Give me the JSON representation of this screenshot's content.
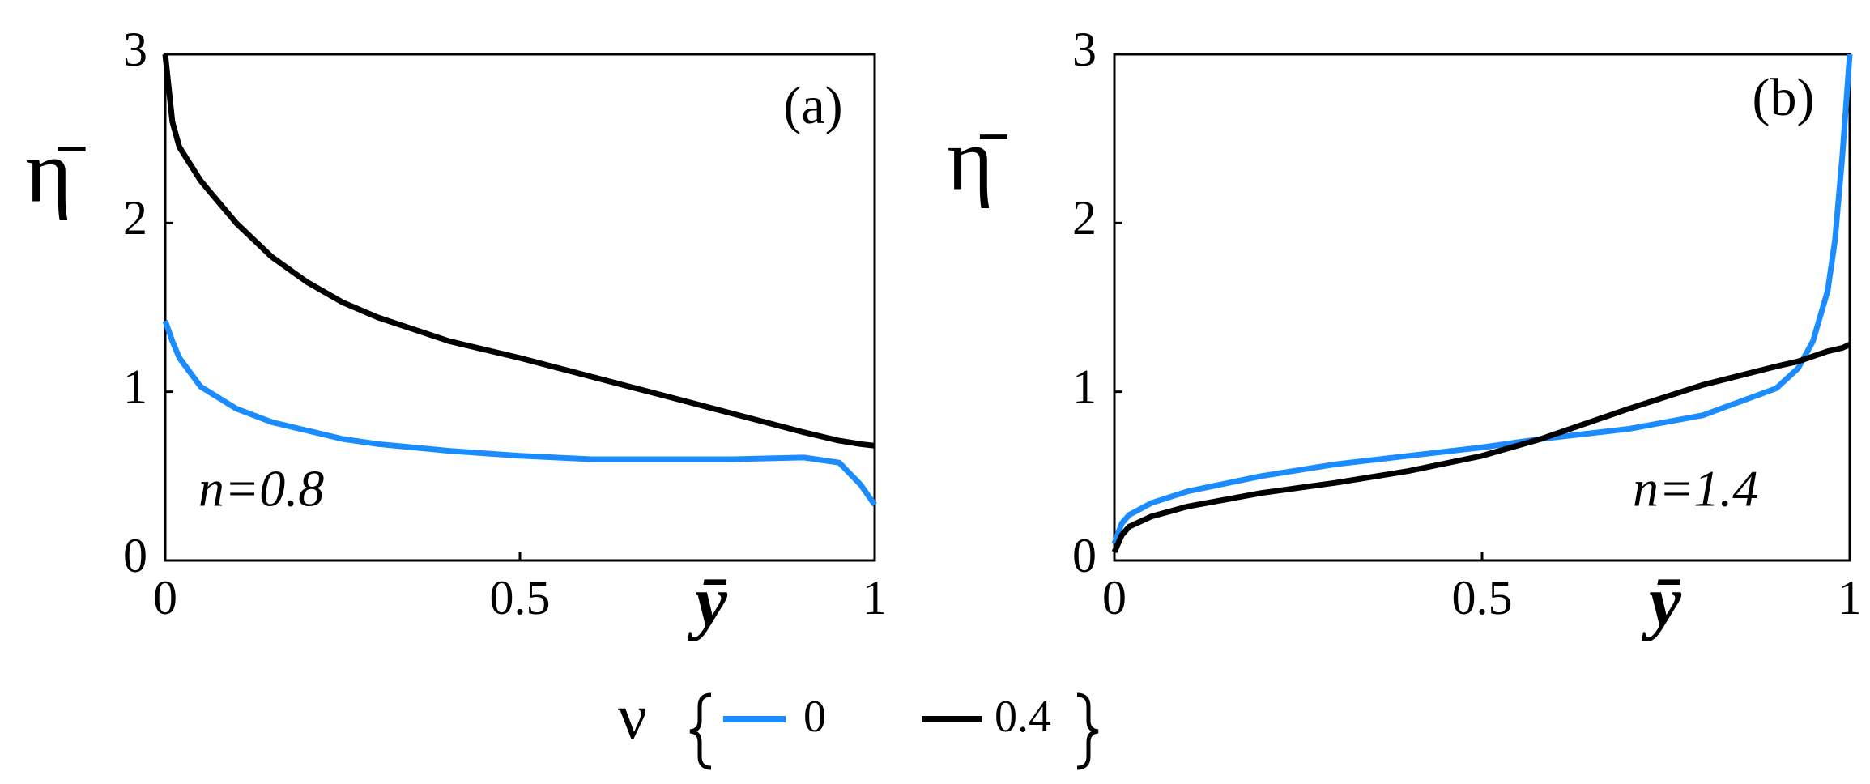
{
  "chart_data": [
    {
      "type": "line",
      "annotation": "(a)",
      "label": "n=0.8",
      "ylabel": "η̄",
      "xlabel": "ȳ",
      "legend_title": "ν",
      "x": [
        0,
        0.01,
        0.02,
        0.05,
        0.1,
        0.15,
        0.2,
        0.25,
        0.3,
        0.4,
        0.5,
        0.6,
        0.7,
        0.8,
        0.9,
        0.95,
        0.98,
        1
      ],
      "series": [
        {
          "name": "0",
          "color": "#1a8cff",
          "values": [
            1.42,
            1.3,
            1.2,
            1.03,
            0.9,
            0.82,
            0.77,
            0.72,
            0.69,
            0.65,
            0.62,
            0.6,
            0.6,
            0.6,
            0.61,
            0.58,
            0.45,
            0.33
          ]
        },
        {
          "name": "0.4",
          "color": "#000000",
          "values": [
            3.0,
            2.6,
            2.45,
            2.25,
            2.0,
            1.8,
            1.65,
            1.53,
            1.44,
            1.3,
            1.2,
            1.09,
            0.98,
            0.87,
            0.76,
            0.71,
            0.69,
            0.68
          ]
        }
      ],
      "xlim": [
        0,
        1
      ],
      "ylim": [
        0,
        3
      ],
      "xticks": [
        0,
        0.5,
        1
      ],
      "yticks": [
        0,
        1,
        2,
        3
      ]
    },
    {
      "type": "line",
      "annotation": "(b)",
      "label": "n=1.4",
      "ylabel": "η̄",
      "xlabel": "ȳ",
      "x": [
        0,
        0.01,
        0.02,
        0.05,
        0.1,
        0.2,
        0.3,
        0.4,
        0.5,
        0.58,
        0.7,
        0.8,
        0.9,
        0.93,
        0.95,
        0.97,
        0.98,
        0.99,
        1
      ],
      "series": [
        {
          "color": "#1a8cff",
          "values": [
            0.1,
            0.22,
            0.27,
            0.34,
            0.41,
            0.5,
            0.57,
            0.62,
            0.67,
            0.72,
            0.78,
            0.86,
            1.02,
            1.14,
            1.3,
            1.6,
            1.9,
            2.4,
            3.0
          ]
        },
        {
          "color": "#000000",
          "values": [
            0.05,
            0.15,
            0.2,
            0.26,
            0.32,
            0.4,
            0.46,
            0.53,
            0.62,
            0.72,
            0.9,
            1.04,
            1.15,
            1.18,
            1.21,
            1.24,
            1.25,
            1.26,
            1.28
          ]
        }
      ],
      "xlim": [
        0,
        1
      ],
      "ylim": [
        0,
        3
      ],
      "xticks": [
        0,
        0.5,
        1
      ],
      "yticks": [
        0,
        1,
        2,
        3
      ]
    }
  ]
}
